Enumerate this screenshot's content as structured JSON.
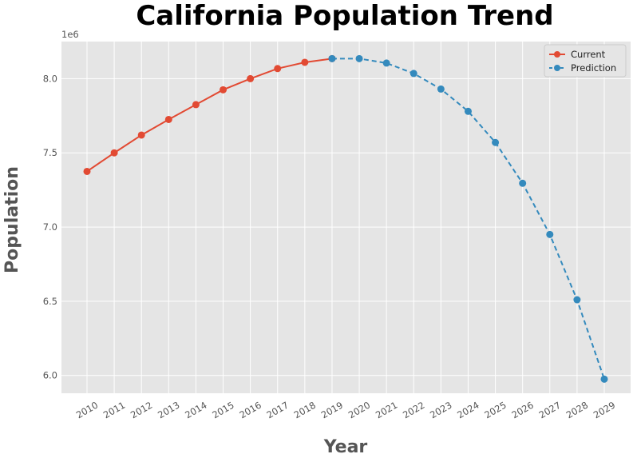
{
  "chart_data": {
    "type": "line",
    "title": "California Population Trend",
    "xlabel": "Year",
    "ylabel": "Population",
    "y_offset_label": "1e6",
    "x_ticks": [
      "2010",
      "2011",
      "2012",
      "2013",
      "2014",
      "2015",
      "2016",
      "2017",
      "2018",
      "2019",
      "2020",
      "2021",
      "2022",
      "2023",
      "2024",
      "2025",
      "2026",
      "2027",
      "2028",
      "2029"
    ],
    "y_ticks": [
      "6.0",
      "6.5",
      "7.0",
      "7.5",
      "8.0"
    ],
    "ylim": [
      5.88,
      8.25
    ],
    "y_scale": 1000000,
    "grid": true,
    "legend_position": "top-right",
    "series": [
      {
        "name": "Current",
        "style": "solid",
        "color": "#e24a33",
        "x": [
          2010,
          2011,
          2012,
          2013,
          2014,
          2015,
          2016,
          2017,
          2018,
          2019
        ],
        "y": [
          7.375,
          7.5,
          7.62,
          7.725,
          7.825,
          7.925,
          8.0,
          8.068,
          8.11,
          8.135
        ]
      },
      {
        "name": "Prediction",
        "style": "dashed",
        "color": "#348abd",
        "x": [
          2019,
          2020,
          2021,
          2022,
          2023,
          2024,
          2025,
          2026,
          2027,
          2028,
          2029
        ],
        "y": [
          8.135,
          8.135,
          8.105,
          8.035,
          7.93,
          7.78,
          7.57,
          7.295,
          6.95,
          6.51,
          5.975
        ]
      }
    ]
  }
}
